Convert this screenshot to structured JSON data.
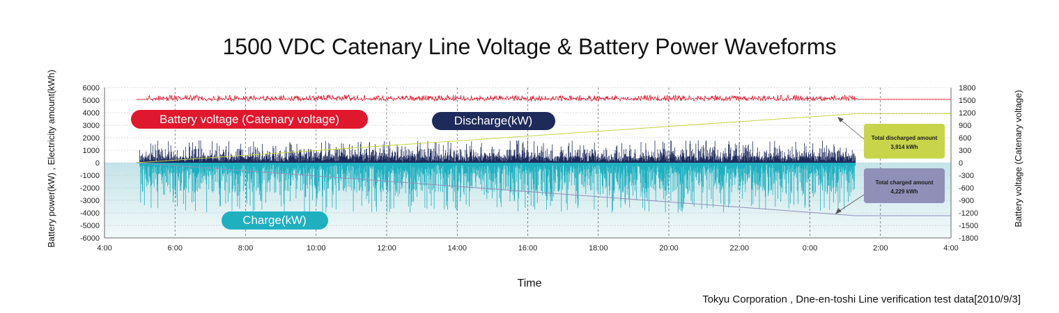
{
  "chart_data": {
    "type": "line",
    "title": "1500 VDC Catenary Line Voltage & Battery Power Waveforms",
    "xlabel": "Time",
    "ylabel_left": "Battery power(kW) , Electricity amount(kWh)",
    "ylabel_right": "Battery voltage (Catenary voltage)",
    "source": "Tokyu Corporation , Dne-en-toshi Line verification test data[2010/9/3]",
    "x_ticks": [
      "4:00",
      "6:00",
      "8:00",
      "10:00",
      "12:00",
      "14:00",
      "16:00",
      "18:00",
      "20:00",
      "22:00",
      "0:00",
      "2:00",
      "4:00"
    ],
    "y_left_ticks": [
      "6000",
      "5000",
      "4000",
      "3000",
      "2000",
      "1000",
      "0",
      "-1000",
      "-2000",
      "-3000",
      "-4000",
      "-5000",
      "-6000"
    ],
    "y_right_ticks": [
      "1800",
      "1500",
      "1200",
      "900",
      "600",
      "300",
      "0",
      "-300",
      "-600",
      "-900",
      "-1200",
      "-1500",
      "-1800"
    ],
    "ylim_left": [
      -6000,
      6000
    ],
    "ylim_right": [
      -1800,
      1800
    ],
    "xlim_hours": [
      4,
      28
    ],
    "grid": true,
    "colors": {
      "voltage": "#e0182d",
      "discharge": "#1e2a5a",
      "charge": "#1fb0c0",
      "discharged_amount": "#c8d44a",
      "charged_amount": "#8f8fb8",
      "charge_fill_top": "#c4e4e8",
      "charge_fill_bottom": "#f2f9fa"
    },
    "series": [
      {
        "name": "Battery voltage (Catenary voltage)",
        "axis": "right",
        "hours_range": [
          5.2,
          25.3
        ],
        "mean": 1530,
        "range": [
          1480,
          1620
        ]
      },
      {
        "name": "Discharge(kW)",
        "axis": "left",
        "hours_range": [
          5.0,
          25.3
        ],
        "range": [
          0,
          1800
        ]
      },
      {
        "name": "Charge(kW)",
        "axis": "left",
        "hours_range": [
          5.0,
          25.3
        ],
        "range": [
          -4000,
          0
        ]
      },
      {
        "name": "Total discharged amount",
        "axis": "left",
        "x": [
          4.9,
          25.3,
          28
        ],
        "y": [
          0,
          3914,
          3914
        ]
      },
      {
        "name": "Total charged amount",
        "axis": "left",
        "x": [
          4.9,
          25.3,
          28
        ],
        "y": [
          0,
          -4229,
          -4229
        ]
      }
    ],
    "labels": {
      "voltage": "Battery voltage (Catenary voltage)",
      "discharge": "Discharge(kW)",
      "charge": "Charge(kW)"
    },
    "annotations": {
      "discharged": {
        "line1": "Total discharged amount",
        "line2": "3,914 kWh"
      },
      "charged": {
        "line1": "Total charged amount",
        "line2": "4,229 kWh"
      }
    }
  }
}
